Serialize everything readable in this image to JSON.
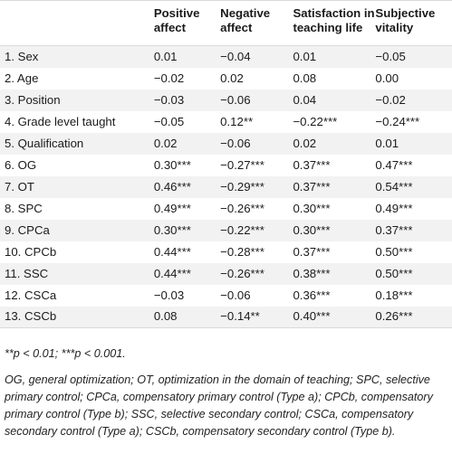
{
  "headers": [
    "",
    "Positive affect",
    "Negative affect",
    "Satisfaction in teaching life",
    "Subjective vitality"
  ],
  "rows": [
    [
      "1. Sex",
      "0.01",
      "−0.04",
      "0.01",
      "−0.05"
    ],
    [
      "2. Age",
      "−0.02",
      "0.02",
      "0.08",
      "0.00"
    ],
    [
      "3. Position",
      "−0.03",
      "−0.06",
      "0.04",
      "−0.02"
    ],
    [
      "4. Grade level taught",
      "−0.05",
      "0.12**",
      "−0.22***",
      "−0.24***"
    ],
    [
      "5. Qualification",
      "0.02",
      "−0.06",
      "0.02",
      "0.01"
    ],
    [
      "6. OG",
      "0.30***",
      "−0.27***",
      "0.37***",
      "0.47***"
    ],
    [
      "7. OT",
      "0.46***",
      "−0.29***",
      "0.37***",
      "0.54***"
    ],
    [
      "8. SPC",
      "0.49***",
      "−0.26***",
      "0.30***",
      "0.49***"
    ],
    [
      "9. CPCa",
      "0.30***",
      "−0.22***",
      "0.30***",
      "0.37***"
    ],
    [
      "10. CPCb",
      "0.44***",
      "−0.28***",
      "0.37***",
      "0.50***"
    ],
    [
      "11. SSC",
      "0.44***",
      "−0.26***",
      "0.38***",
      "0.50***"
    ],
    [
      "12. CSCa",
      "−0.03",
      "−0.06",
      "0.36***",
      "0.18***"
    ],
    [
      "13. CSCb",
      "0.08",
      "−0.14**",
      "0.40***",
      "0.26***"
    ]
  ],
  "notes": {
    "significance": "**p < 0.01; ***p < 0.001.",
    "abbreviations": "OG, general optimization; OT, optimization in the domain of teaching; SPC, selective primary control; CPCa, compensatory primary control (Type a); CPCb, compensatory primary control (Type b); SSC, selective secondary control; CSCa, compensatory secondary control (Type a); CSCb, compensatory secondary control (Type b)."
  }
}
